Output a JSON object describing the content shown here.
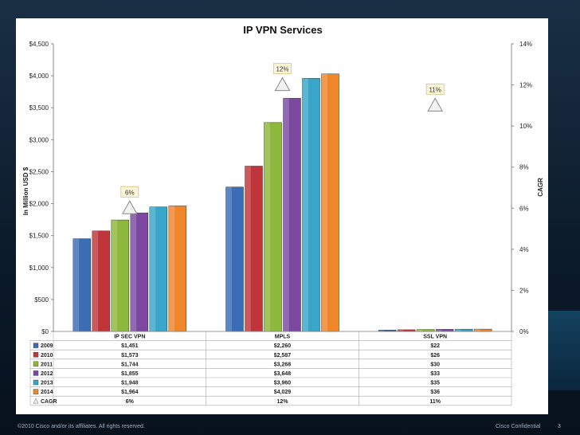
{
  "footer": {
    "left": "©2010 Cisco and/or its affiliates. All rights reserved.",
    "right": "Cisco Confidential",
    "page": "3"
  },
  "chart_data": {
    "type": "bar",
    "title": "IP VPN Services",
    "ylabel": "In Million USD $",
    "y2label": "CAGR",
    "ylim": [
      0,
      4500
    ],
    "y2lim": [
      0,
      14
    ],
    "yticks": [
      "$0",
      "$500",
      "$1,000",
      "$1,500",
      "$2,000",
      "$2,500",
      "$3,000",
      "$3,500",
      "$4,000",
      "$4,500"
    ],
    "y2ticks": [
      "0%",
      "2%",
      "4%",
      "6%",
      "8%",
      "10%",
      "12%",
      "14%"
    ],
    "categories": [
      "IP SEC VPN",
      "MPLS",
      "SSL VPN"
    ],
    "series": [
      {
        "name": "2009",
        "color": "#3b6cb5",
        "values": [
          1451,
          2260,
          22
        ],
        "labels": [
          "$1,451",
          "$2,260",
          "$22"
        ]
      },
      {
        "name": "2010",
        "color": "#c0353a",
        "values": [
          1573,
          2587,
          26
        ],
        "labels": [
          "$1,573",
          "$2,587",
          "$26"
        ]
      },
      {
        "name": "2011",
        "color": "#8db83c",
        "values": [
          1744,
          3268,
          30
        ],
        "labels": [
          "$1,744",
          "$3,268",
          "$30"
        ]
      },
      {
        "name": "2012",
        "color": "#7b4aa0",
        "values": [
          1855,
          3648,
          33
        ],
        "labels": [
          "$1,855",
          "$3,648",
          "$33"
        ]
      },
      {
        "name": "2013",
        "color": "#38a6c8",
        "values": [
          1948,
          3960,
          35
        ],
        "labels": [
          "$1,948",
          "$3,960",
          "$35"
        ]
      },
      {
        "name": "2014",
        "color": "#f0862a",
        "values": [
          1964,
          4029,
          36
        ],
        "labels": [
          "$1,964",
          "$4,029",
          "$36"
        ]
      }
    ],
    "cagr": {
      "name": "CAGR",
      "values": [
        6,
        12,
        11
      ],
      "labels": [
        "6%",
        "12%",
        "11%"
      ]
    },
    "grid": false,
    "legend": "table-below"
  }
}
